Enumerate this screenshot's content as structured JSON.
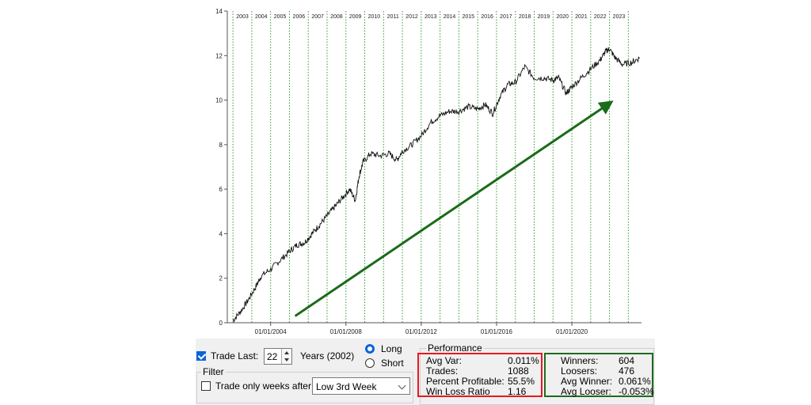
{
  "colors": {
    "grid_green": "#2ca02c",
    "trend_arrow": "#1a6b1a",
    "red_box": "#e8181e",
    "green_box": "#1e6b1e",
    "accent": "#0a64d8"
  },
  "chart_data": {
    "type": "line",
    "series": [
      {
        "values": [
          [
            2002.0,
            0.1
          ],
          [
            2002.4,
            0.5
          ],
          [
            2002.8,
            1.0
          ],
          [
            2003.2,
            1.6
          ],
          [
            2003.5,
            2.1
          ],
          [
            2004.0,
            2.4
          ],
          [
            2004.5,
            2.8
          ],
          [
            2005.0,
            3.2
          ],
          [
            2005.4,
            3.5
          ],
          [
            2005.8,
            3.6
          ],
          [
            2006.2,
            4.0
          ],
          [
            2006.6,
            4.4
          ],
          [
            2007.0,
            4.8
          ],
          [
            2007.4,
            5.2
          ],
          [
            2007.8,
            5.6
          ],
          [
            2008.2,
            6.0
          ],
          [
            2008.5,
            5.5
          ],
          [
            2008.7,
            6.6
          ],
          [
            2008.9,
            7.2
          ],
          [
            2009.3,
            7.6
          ],
          [
            2009.8,
            7.5
          ],
          [
            2010.3,
            7.6
          ],
          [
            2010.7,
            7.3
          ],
          [
            2011.0,
            7.7
          ],
          [
            2011.5,
            8.0
          ],
          [
            2012.0,
            8.4
          ],
          [
            2012.5,
            9.0
          ],
          [
            2013.0,
            9.3
          ],
          [
            2013.5,
            9.5
          ],
          [
            2014.0,
            9.5
          ],
          [
            2014.5,
            9.7
          ],
          [
            2015.0,
            9.6
          ],
          [
            2015.4,
            9.8
          ],
          [
            2015.8,
            9.4
          ],
          [
            2016.2,
            10.2
          ],
          [
            2016.6,
            10.7
          ],
          [
            2017.0,
            10.8
          ],
          [
            2017.5,
            11.5
          ],
          [
            2018.0,
            11.0
          ],
          [
            2018.5,
            11.0
          ],
          [
            2019.0,
            10.9
          ],
          [
            2019.3,
            11.0
          ],
          [
            2019.7,
            10.3
          ],
          [
            2020.0,
            10.6
          ],
          [
            2020.5,
            11.0
          ],
          [
            2021.0,
            11.4
          ],
          [
            2021.5,
            11.8
          ],
          [
            2021.8,
            12.2
          ],
          [
            2022.0,
            12.3
          ],
          [
            2022.3,
            11.9
          ],
          [
            2022.7,
            11.6
          ],
          [
            2023.2,
            11.7
          ],
          [
            2023.6,
            11.9
          ]
        ]
      }
    ],
    "xlim": [
      2001.7,
      2023.7
    ],
    "ylim": [
      0,
      14
    ],
    "y_ticks": [
      0,
      2,
      4,
      6,
      8,
      10,
      12,
      14
    ],
    "year_labels": [
      "2003",
      "2004",
      "2005",
      "2006",
      "2007",
      "2008",
      "2009",
      "2010",
      "2011",
      "2012",
      "2013",
      "2014",
      "2015",
      "2016",
      "2017",
      "2018",
      "2019",
      "2020",
      "2021",
      "2022",
      "2023"
    ],
    "year_positions": [
      2002,
      2003,
      2004,
      2005,
      2006,
      2007,
      2008,
      2009,
      2010,
      2011,
      2012,
      2013,
      2014,
      2015,
      2016,
      2017,
      2018,
      2019,
      2020,
      2021,
      2022,
      2023
    ],
    "date_ticks": [
      {
        "label": "01/01/2004",
        "x": 2004
      },
      {
        "label": "01/01/2008",
        "x": 2008
      },
      {
        "label": "01/01/2012",
        "x": 2012
      },
      {
        "label": "01/01/2016",
        "x": 2016
      },
      {
        "label": "01/01/2020",
        "x": 2020
      }
    ],
    "trend_arrow": {
      "from": [
        2005.3,
        0.3
      ],
      "to": [
        2021.9,
        9.8
      ]
    },
    "grid": "vertical dotted green at year boundaries"
  },
  "controls": {
    "trade_last_label": "Trade Last:",
    "trade_last_checked": true,
    "years_value": "22",
    "years_label": "Years (2002)",
    "long_label": "Long",
    "short_label": "Short",
    "direction_selected": "Long",
    "filter_label": "Filter",
    "trade_weeks_label": "Trade only weeks after:",
    "trade_weeks_checked": false,
    "weeks_option": "Low 3rd Week"
  },
  "performance": {
    "title": "Performance",
    "left": [
      {
        "label": "Avg Var:",
        "value": "0.011%"
      },
      {
        "label": "Trades:",
        "value": "1088"
      },
      {
        "label": "Percent Profitable:",
        "value": "55.5%"
      },
      {
        "label": "Win Loss Ratio",
        "value": "1.16"
      }
    ],
    "right": [
      {
        "label": "Winners:",
        "value": "604"
      },
      {
        "label": "Loosers:",
        "value": "476"
      },
      {
        "label": "Avg Winner:",
        "value": "0.061%"
      },
      {
        "label": "Avg Looser:",
        "value": "-0.053%"
      }
    ]
  }
}
